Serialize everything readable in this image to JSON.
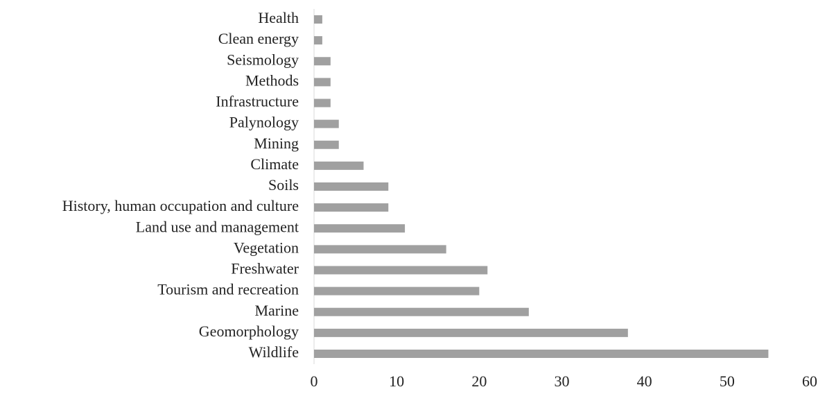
{
  "chart_data": {
    "type": "bar",
    "orientation": "horizontal",
    "categories": [
      "Health",
      "Clean energy",
      "Seismology",
      "Methods",
      "Infrastructure",
      "Palynology",
      "Mining",
      "Climate",
      "Soils",
      "History, human occupation and culture",
      "Land use and management",
      "Vegetation",
      "Freshwater",
      "Tourism and recreation",
      "Marine",
      "Geomorphology",
      "Wildlife"
    ],
    "values": [
      1,
      1,
      2,
      2,
      2,
      3,
      3,
      6,
      9,
      9,
      11,
      16,
      21,
      20,
      26,
      38,
      55
    ],
    "color": "#a0a0a0",
    "xlim": [
      0,
      60
    ],
    "xticks": [
      0,
      10,
      20,
      30,
      40,
      50,
      60
    ],
    "grid": false
  }
}
